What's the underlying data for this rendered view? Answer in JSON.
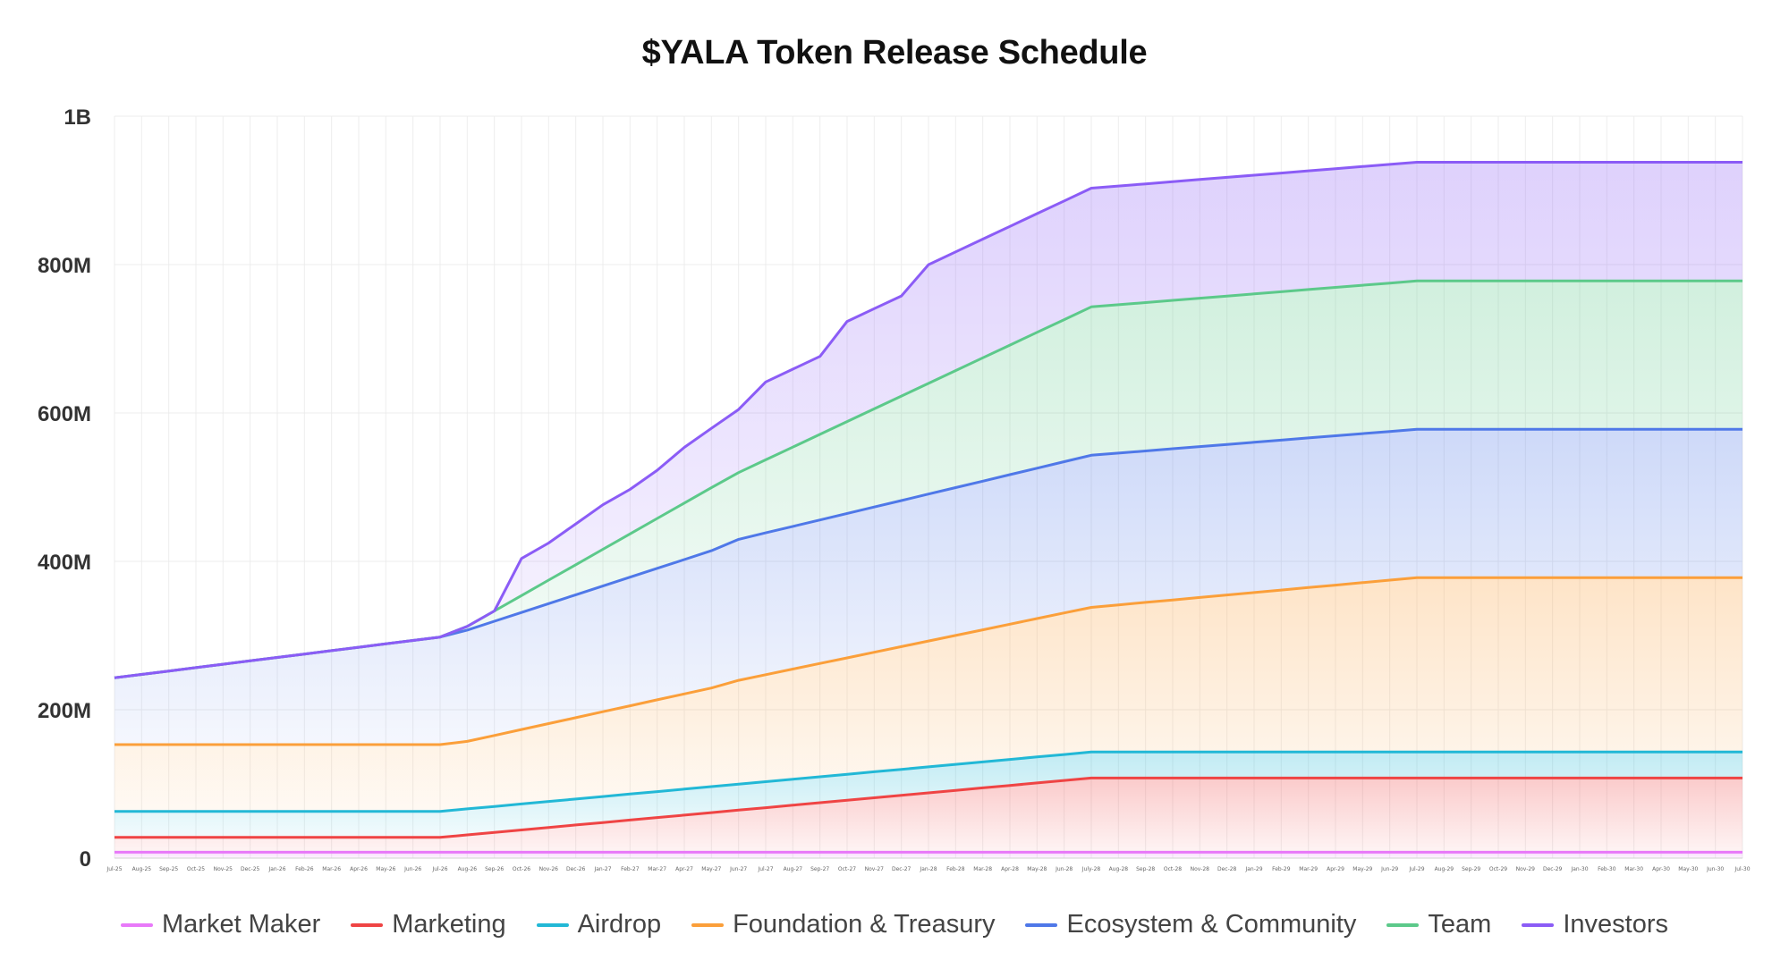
{
  "chart_data": {
    "type": "area",
    "stacked": true,
    "title": "$YALA Token Release Schedule",
    "xlabel": "",
    "ylabel": "",
    "ylim": [
      0,
      1000000000
    ],
    "y_ticks": [
      {
        "value": 0,
        "label": "0"
      },
      {
        "value": 200000000,
        "label": "200M"
      },
      {
        "value": 400000000,
        "label": "400M"
      },
      {
        "value": 600000000,
        "label": "600M"
      },
      {
        "value": 800000000,
        "label": "800M"
      },
      {
        "value": 1000000000,
        "label": "1B"
      }
    ],
    "grid": true,
    "legend": "bottom",
    "categories": [
      "Jul-25",
      "Aug-25",
      "Sep-25",
      "Oct-25",
      "Nov-25",
      "Dec-25",
      "Jan-26",
      "Feb-26",
      "Mar-26",
      "Apr-26",
      "May-26",
      "Jun-26",
      "Jul-26",
      "Aug-26",
      "Sep-26",
      "Oct-26",
      "Nov-26",
      "Dec-26",
      "Jan-27",
      "Feb-27",
      "Mar-27",
      "Apr-27",
      "May-27",
      "Jun-27",
      "Jul-27",
      "Aug-27",
      "Sep-27",
      "Oct-27",
      "Nov-27",
      "Dec-27",
      "Jan-28",
      "Feb-28",
      "Mar-28",
      "Apr-28",
      "May-28",
      "Jun-28",
      "July-28",
      "Aug-28",
      "Sep-28",
      "Oct-28",
      "Nov-28",
      "Dec-28",
      "Jan-29",
      "Feb-29",
      "Mar-29",
      "Apr-29",
      "May-29",
      "Jun-29",
      "Jul-29",
      "Aug-29",
      "Sep-29",
      "Oct-29",
      "Nov-29",
      "Dec-29",
      "Jan-30",
      "Feb-30",
      "Mar-30",
      "Apr-30",
      "May-30",
      "Jun-30",
      "Jul-30"
    ],
    "series": [
      {
        "name": "Market Maker",
        "color": "#e879f9",
        "keyframes": [
          [
            0,
            8
          ],
          [
            60,
            8
          ]
        ]
      },
      {
        "name": "Marketing",
        "color": "#ef4444",
        "keyframes": [
          [
            0,
            20
          ],
          [
            12,
            20
          ],
          [
            36,
            100
          ],
          [
            60,
            100
          ]
        ]
      },
      {
        "name": "Airdrop",
        "color": "#22b8d6",
        "keyframes": [
          [
            0,
            35
          ],
          [
            12,
            35
          ],
          [
            36,
            35
          ],
          [
            60,
            35
          ]
        ]
      },
      {
        "name": "Foundation & Treasury",
        "color": "#fb9f3a",
        "keyframes": [
          [
            0,
            90
          ],
          [
            12,
            90
          ],
          [
            13,
            91
          ],
          [
            22,
            133
          ],
          [
            23,
            140
          ],
          [
            36,
            195
          ],
          [
            48,
            235
          ],
          [
            60,
            235
          ]
        ]
      },
      {
        "name": "Ecosystem & Community",
        "color": "#4f78e8",
        "keyframes": [
          [
            0,
            90
          ],
          [
            12,
            145
          ],
          [
            13,
            150
          ],
          [
            22,
            185
          ],
          [
            23,
            190
          ],
          [
            36,
            205
          ],
          [
            48,
            200
          ],
          [
            60,
            200
          ]
        ]
      },
      {
        "name": "Team",
        "color": "#5cc98a",
        "keyframes": [
          [
            0,
            0
          ],
          [
            12,
            0
          ],
          [
            13,
            5
          ],
          [
            22,
            85
          ],
          [
            23,
            90
          ],
          [
            36,
            200
          ],
          [
            48,
            200
          ],
          [
            60,
            200
          ]
        ]
      },
      {
        "name": "Investors",
        "color": "#8b5cf6",
        "keyframes": [
          [
            0,
            0
          ],
          [
            12,
            0
          ],
          [
            13,
            0
          ],
          [
            14,
            0
          ],
          [
            15,
            50
          ],
          [
            16,
            50
          ],
          [
            17,
            55
          ],
          [
            18,
            60
          ],
          [
            19,
            60
          ],
          [
            20,
            65
          ],
          [
            21,
            75
          ],
          [
            22,
            80
          ],
          [
            23,
            85
          ],
          [
            24,
            105
          ],
          [
            25,
            105
          ],
          [
            26,
            105
          ],
          [
            27,
            135
          ],
          [
            28,
            135
          ],
          [
            29,
            135
          ],
          [
            30,
            160
          ],
          [
            31,
            160
          ],
          [
            36,
            160
          ],
          [
            48,
            160
          ],
          [
            60,
            160
          ]
        ]
      }
    ],
    "units": "millions of tokens"
  }
}
